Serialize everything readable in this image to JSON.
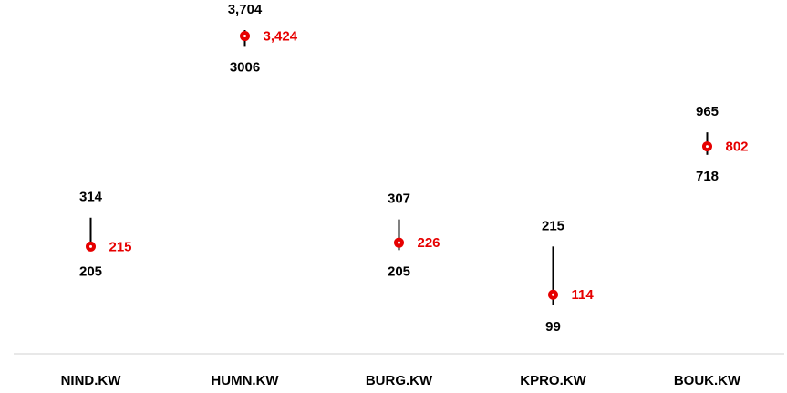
{
  "chart_data": {
    "type": "high-low-current",
    "categories": [
      "NIND.KW",
      "HUMN.KW",
      "BURG.KW",
      "KPRO.KW",
      "BOUK.KW"
    ],
    "high": [
      314,
      3704,
      307,
      215,
      965
    ],
    "high_labels": [
      "314",
      "3,704",
      "307",
      "215",
      "965"
    ],
    "low": [
      205,
      3006,
      205,
      99,
      718
    ],
    "low_labels": [
      "205",
      "3006",
      "205",
      "99",
      "718"
    ],
    "current": [
      215,
      3424,
      226,
      114,
      802
    ],
    "current_labels": [
      "215",
      "3,424",
      "226",
      "114",
      "802"
    ],
    "log_scale": true,
    "line_color": "#000000",
    "current_color": "#e60000"
  }
}
